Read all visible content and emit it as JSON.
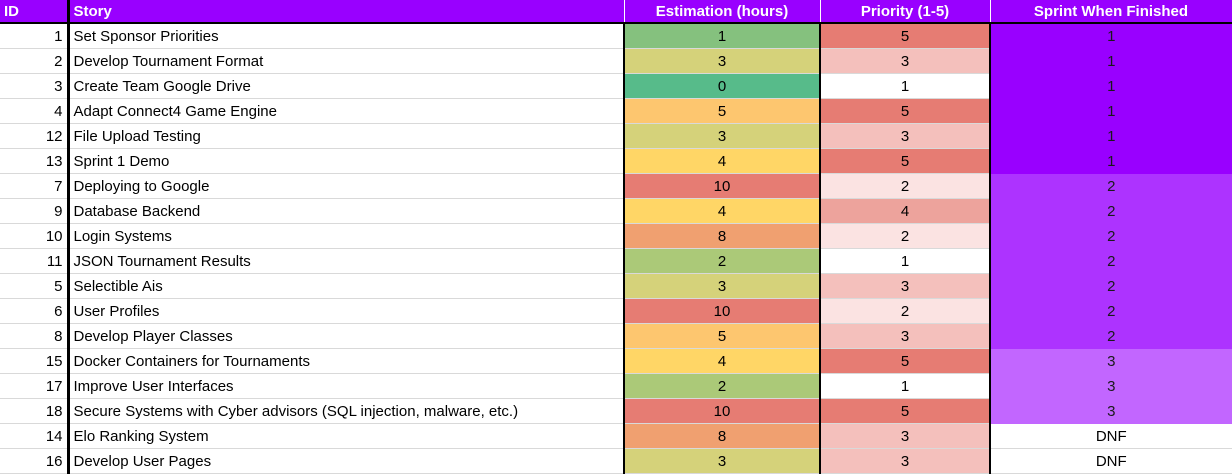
{
  "headers": {
    "id": "ID",
    "story": "Story",
    "estimation": "Estimation (hours)",
    "priority": "Priority (1-5)",
    "sprint": "Sprint When Finished"
  },
  "colors": {
    "header_bg": "#9900ff",
    "estimation_scale": {
      "0": "#57bb8a",
      "1": "#85c17e",
      "2": "#abc978",
      "3": "#d5d27a",
      "4": "#ffd666",
      "5": "#fdc66f",
      "8": "#f0a070",
      "10": "#e67c73"
    },
    "priority_scale": {
      "1": "#ffffff",
      "2": "#fbe3e2",
      "3": "#f4c0bc",
      "4": "#eda39c",
      "5": "#e67c73"
    },
    "sprint_scale": {
      "1": "#9900ff",
      "2": "#ad33ff",
      "3": "#c266ff",
      "DNF": "#ffffff"
    }
  },
  "rows": [
    {
      "id": "1",
      "story": "Set Sponsor Priorities",
      "estimation": "1",
      "priority": "5",
      "sprint": "1"
    },
    {
      "id": "2",
      "story": "Develop Tournament Format",
      "estimation": "3",
      "priority": "3",
      "sprint": "1"
    },
    {
      "id": "3",
      "story": "Create Team Google Drive",
      "estimation": "0",
      "priority": "1",
      "sprint": "1"
    },
    {
      "id": "4",
      "story": "Adapt Connect4 Game Engine",
      "estimation": "5",
      "priority": "5",
      "sprint": "1"
    },
    {
      "id": "12",
      "story": "File Upload Testing",
      "estimation": "3",
      "priority": "3",
      "sprint": "1"
    },
    {
      "id": "13",
      "story": "Sprint 1 Demo",
      "estimation": "4",
      "priority": "5",
      "sprint": "1"
    },
    {
      "id": "7",
      "story": "Deploying to Google",
      "estimation": "10",
      "priority": "2",
      "sprint": "2"
    },
    {
      "id": "9",
      "story": "Database Backend",
      "estimation": "4",
      "priority": "4",
      "sprint": "2"
    },
    {
      "id": "10",
      "story": "Login Systems",
      "estimation": "8",
      "priority": "2",
      "sprint": "2"
    },
    {
      "id": "11",
      "story": "JSON Tournament Results",
      "estimation": "2",
      "priority": "1",
      "sprint": "2"
    },
    {
      "id": "5",
      "story": "Selectible Ais",
      "estimation": "3",
      "priority": "3",
      "sprint": "2"
    },
    {
      "id": "6",
      "story": "User Profiles",
      "estimation": "10",
      "priority": "2",
      "sprint": "2"
    },
    {
      "id": "8",
      "story": "Develop Player Classes",
      "estimation": "5",
      "priority": "3",
      "sprint": "2"
    },
    {
      "id": "15",
      "story": "Docker Containers for Tournaments",
      "estimation": "4",
      "priority": "5",
      "sprint": "3"
    },
    {
      "id": "17",
      "story": "Improve User Interfaces",
      "estimation": "2",
      "priority": "1",
      "sprint": "3"
    },
    {
      "id": "18",
      "story": "Secure Systems with Cyber advisors (SQL injection, malware, etc.)",
      "estimation": "10",
      "priority": "5",
      "sprint": "3"
    },
    {
      "id": "14",
      "story": "Elo Ranking System",
      "estimation": "8",
      "priority": "3",
      "sprint": "DNF"
    },
    {
      "id": "16",
      "story": "Develop User Pages",
      "estimation": "3",
      "priority": "3",
      "sprint": "DNF"
    }
  ]
}
